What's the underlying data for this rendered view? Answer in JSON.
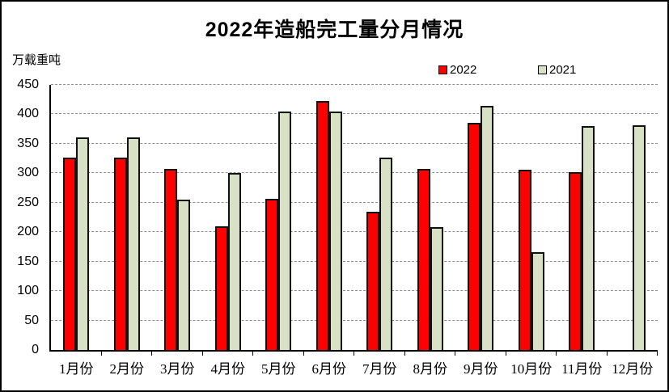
{
  "chart_data": {
    "type": "bar",
    "title": "2022年造船完工量分月情况",
    "ylabel_unit": "万载重吨",
    "categories": [
      "1月份",
      "2月份",
      "3月份",
      "4月份",
      "5月份",
      "6月份",
      "7月份",
      "8月份",
      "9月份",
      "10月份",
      "11月份",
      "12月份"
    ],
    "series": [
      {
        "name": "2022",
        "color": "#ff0000",
        "values": [
          326,
          326,
          307,
          210,
          256,
          422,
          235,
          307,
          386,
          306,
          302,
          null
        ]
      },
      {
        "name": "2021",
        "color": "#d8e1c5",
        "values": [
          361,
          361,
          255,
          301,
          405,
          405,
          326,
          209,
          414,
          166,
          380,
          381
        ]
      }
    ],
    "ylim": [
      0,
      450
    ],
    "ytick_step": 50,
    "yticks": [
      0,
      50,
      100,
      150,
      200,
      250,
      300,
      350,
      400,
      450
    ],
    "grid": "horizontal-dashed",
    "gridline_color": "#8f8f8f",
    "legend_position": "top-right",
    "bar_outline_color": "#000000"
  }
}
